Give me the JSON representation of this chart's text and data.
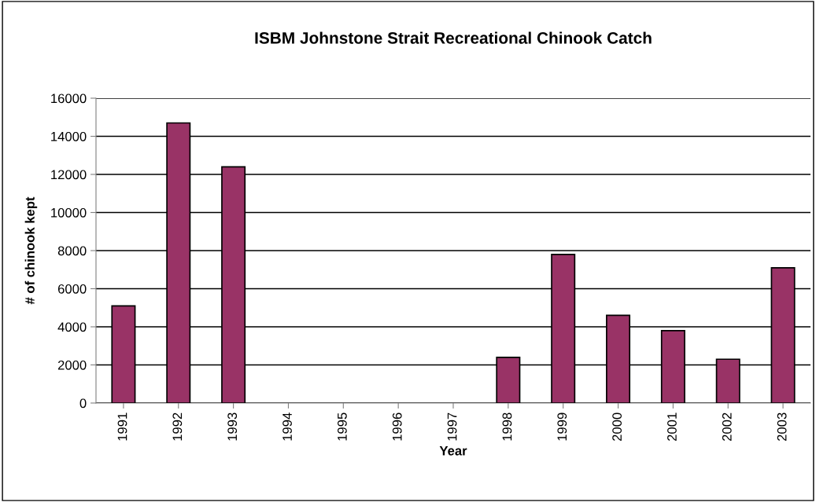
{
  "chart_data": {
    "type": "bar",
    "title": "ISBM Johnstone Strait Recreational Chinook Catch",
    "xlabel": "Year",
    "ylabel": "# of chinook kept",
    "categories": [
      "1991",
      "1992",
      "1993",
      "1994",
      "1995",
      "1996",
      "1997",
      "1998",
      "1999",
      "2000",
      "2001",
      "2002",
      "2003"
    ],
    "values": [
      5100,
      14700,
      12400,
      null,
      null,
      null,
      null,
      2400,
      7800,
      4600,
      3800,
      2300,
      7100
    ],
    "color": "#993366",
    "ylim": [
      0,
      16000
    ],
    "yticks": [
      0,
      2000,
      4000,
      6000,
      8000,
      10000,
      12000,
      14000,
      16000
    ],
    "grid": "y"
  }
}
